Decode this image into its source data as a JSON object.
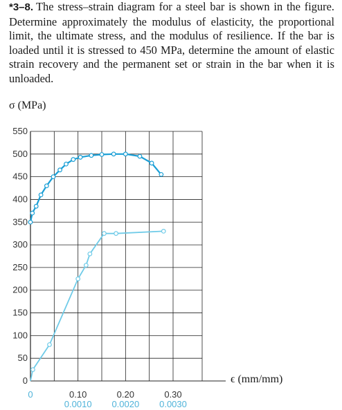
{
  "problem": {
    "number": "*3–8.",
    "text": "The stress–strain diagram for a steel bar is shown in the figure. Determine approximately the modulus of elasticity, the proportional limit, the ultimate stress, and the modulus of resilience. If the bar is loaded until it is stressed to 450 MPa, determine the amount of elastic strain recovery and the permanent set or strain in the bar when it is unloaded."
  },
  "chart_data": {
    "type": "line",
    "ylabel": "σ (MPa)",
    "xlabel": "ϵ (mm/mm)",
    "ylim": [
      0,
      550
    ],
    "yticks": [
      0,
      50,
      100,
      150,
      200,
      250,
      300,
      350,
      400,
      450,
      500,
      550
    ],
    "upper_xticks": [
      "0.10",
      "0.20",
      "0.30"
    ],
    "lower_xticks": [
      "0",
      "0.0010",
      "0.0020",
      "0.0030"
    ],
    "upper_xlim": [
      0,
      0.3
    ],
    "lower_xlim": [
      0,
      0.003
    ],
    "grid": true,
    "colors": {
      "upper_curve": "#1a9fd6",
      "lower_curve": "#6fcbe8",
      "tick_label_lower": "#4fb3d9",
      "grid": "#222222"
    },
    "series": [
      {
        "scale": "upper",
        "x": [
          0.0,
          0.004,
          0.012,
          0.022,
          0.034,
          0.048,
          0.062,
          0.075,
          0.09,
          0.105,
          0.128,
          0.15,
          0.175,
          0.2,
          0.23,
          0.255,
          0.275
        ],
        "y": [
          350,
          370,
          385,
          410,
          430,
          450,
          465,
          478,
          488,
          493,
          497,
          499,
          500,
          500,
          495,
          480,
          455
        ]
      },
      {
        "scale": "lower",
        "x": [
          0.0,
          5e-05,
          0.0004,
          0.001,
          0.00117,
          0.00125,
          0.00155,
          0.0018,
          0.0028
        ],
        "y": [
          0,
          25,
          80,
          225,
          255,
          280,
          325,
          325,
          330
        ]
      }
    ]
  }
}
